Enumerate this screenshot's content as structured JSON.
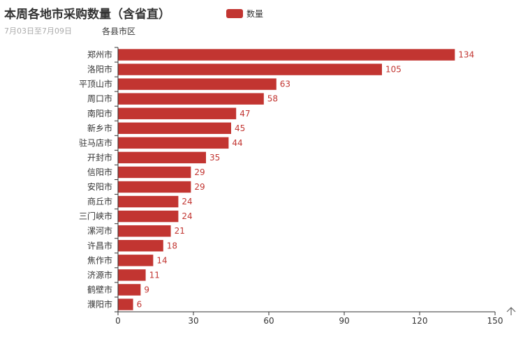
{
  "title": "本周各地市采购数量（含省直）",
  "subtitle": "7月03日至7月09日",
  "colors": {
    "bar": "#c23531",
    "axis": "#333333"
  },
  "toolbox": {
    "icon": "arrow-up-icon"
  },
  "chart_data": {
    "type": "bar",
    "orientation": "horizontal",
    "yaxis_name": "各县市区",
    "legend": {
      "entries": [
        "数量"
      ],
      "placement": "top-center"
    },
    "categories": [
      "郑州市",
      "洛阳市",
      "平顶山市",
      "周口市",
      "南阳市",
      "新乡市",
      "驻马店市",
      "开封市",
      "信阳市",
      "安阳市",
      "商丘市",
      "三门峡市",
      "漯河市",
      "许昌市",
      "焦作市",
      "济源市",
      "鹤壁市",
      "濮阳市"
    ],
    "series": [
      {
        "name": "数量",
        "values": [
          134,
          105,
          63,
          58,
          47,
          45,
          44,
          35,
          29,
          29,
          24,
          24,
          21,
          18,
          14,
          11,
          9,
          6
        ]
      }
    ],
    "xlim": [
      0,
      150
    ],
    "xticks": [
      0,
      30,
      60,
      90,
      120,
      150
    ],
    "grid": false
  }
}
